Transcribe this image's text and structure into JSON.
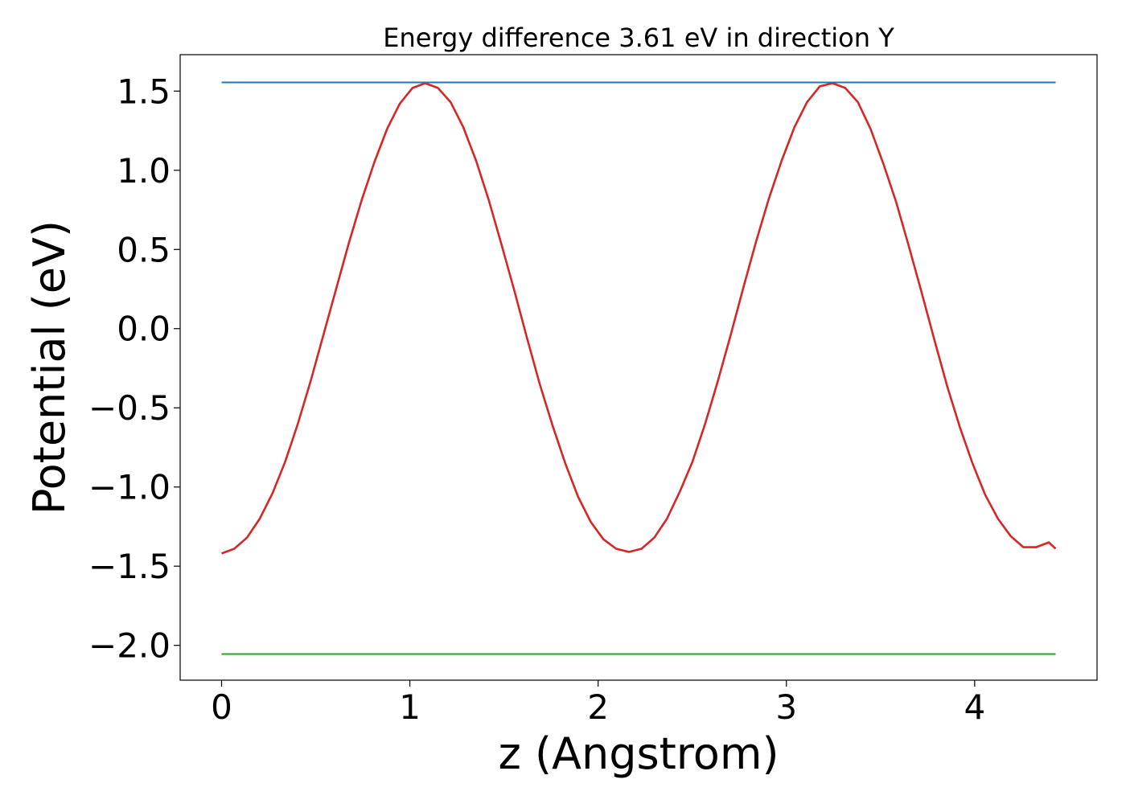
{
  "chart_data": {
    "type": "line",
    "title": "Energy difference 3.61 eV in direction Y",
    "xlabel": "z (Angstrom)",
    "ylabel": "Potential (eV)",
    "xlim": [
      -0.22,
      4.65
    ],
    "ylim": [
      -2.22,
      1.73
    ],
    "x_ticks": [
      0,
      1,
      2,
      3,
      4
    ],
    "x_tick_labels": [
      "0",
      "1",
      "2",
      "3",
      "4"
    ],
    "y_ticks": [
      1.5,
      1.0,
      0.5,
      0.0,
      -0.5,
      -1.0,
      -1.5,
      -2.0
    ],
    "y_tick_labels": [
      "1.5",
      "1.0",
      "0.5",
      "0.0",
      "−0.5",
      "−1.0",
      "−1.5",
      "−2.0"
    ],
    "grid": false,
    "series": [
      {
        "color": "#d62728",
        "x": [
          0.0,
          0.0676,
          0.1352,
          0.2028,
          0.2704,
          0.338,
          0.4056,
          0.4732,
          0.5408,
          0.6084,
          0.676,
          0.7436,
          0.8112,
          0.8788,
          0.9464,
          1.014,
          1.0816,
          1.1492,
          1.2168,
          1.2844,
          1.352,
          1.4196,
          1.4872,
          1.5548,
          1.6224,
          1.69,
          1.7576,
          1.8252,
          1.8928,
          1.9604,
          2.028,
          2.0956,
          2.1632,
          2.2308,
          2.2984,
          2.366,
          2.4336,
          2.5012,
          2.5688,
          2.6364,
          2.704,
          2.7716,
          2.8392,
          2.9068,
          2.9744,
          3.042,
          3.1096,
          3.1772,
          3.2448,
          3.3124,
          3.38,
          3.4476,
          3.5152,
          3.5828,
          3.6504,
          3.718,
          3.7856,
          3.8532,
          3.9208,
          3.9884,
          4.056,
          4.1236,
          4.1912,
          4.2588,
          4.3264,
          4.394,
          4.43
        ],
        "y": [
          -1.42,
          -1.39,
          -1.32,
          -1.2,
          -1.04,
          -0.84,
          -0.6,
          -0.33,
          -0.04,
          0.25,
          0.54,
          0.81,
          1.05,
          1.26,
          1.42,
          1.52,
          1.55,
          1.52,
          1.43,
          1.27,
          1.06,
          0.81,
          0.53,
          0.24,
          -0.06,
          -0.35,
          -0.61,
          -0.85,
          -1.06,
          -1.22,
          -1.33,
          -1.39,
          -1.41,
          -1.39,
          -1.32,
          -1.2,
          -1.03,
          -0.84,
          -0.6,
          -0.33,
          -0.04,
          0.26,
          0.55,
          0.82,
          1.06,
          1.27,
          1.43,
          1.53,
          1.55,
          1.52,
          1.43,
          1.26,
          1.04,
          0.8,
          0.52,
          0.23,
          -0.07,
          -0.36,
          -0.62,
          -0.85,
          -1.05,
          -1.2,
          -1.31,
          -1.38,
          -1.38,
          -1.35,
          -1.39
        ]
      },
      {
        "color": "#1f77b4",
        "x": [
          0.0,
          4.43
        ],
        "y": [
          1.555,
          1.555
        ]
      },
      {
        "color": "#2ca02c",
        "x": [
          0.0,
          4.43
        ],
        "y": [
          -2.055,
          -2.055
        ]
      }
    ]
  }
}
